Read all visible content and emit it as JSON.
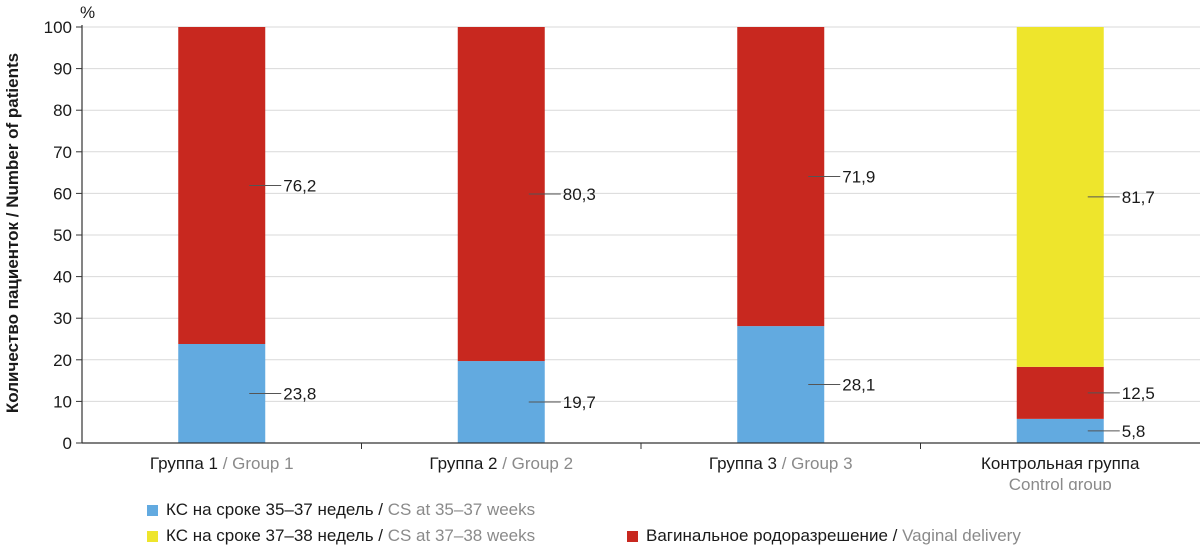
{
  "chart_data": {
    "type": "bar",
    "stacked": true,
    "unit": "%",
    "ylabel": "Количество пациенток / Number of patients",
    "ylim": [
      0,
      100
    ],
    "yticks": [
      0,
      10,
      20,
      30,
      40,
      50,
      60,
      70,
      80,
      90,
      100
    ],
    "categories": [
      {
        "ru": "Группа 1",
        "sep": " / ",
        "en": "Group 1"
      },
      {
        "ru": "Группа 2",
        "sep": " / ",
        "en": "Group 2"
      },
      {
        "ru": "Группа 3",
        "sep": " / ",
        "en": "Group 3"
      },
      {
        "ru": "Контрольная группа",
        "sep": "",
        "en": "Control group"
      }
    ],
    "series": [
      {
        "name_ru": "КС на сроке 35–37 недель",
        "name_en": "CS at 35–37 weeks",
        "color": "#62aae0",
        "values": [
          23.8,
          19.7,
          28.1,
          5.8
        ],
        "labels": [
          "23,8",
          "19,7",
          "28,1",
          "5,8"
        ]
      },
      {
        "name_ru": "Вагинальное родоразрешение",
        "name_en": "Vaginal delivery",
        "color": "#c8281f",
        "values": [
          76.2,
          80.3,
          71.9,
          12.5
        ],
        "labels": [
          "76,2",
          "80,3",
          "71,9",
          "12,5"
        ]
      },
      {
        "name_ru": "КС на сроке 37–38 недель",
        "name_en": "CS at 37–38 weeks",
        "color": "#eee52c",
        "values": [
          0,
          0,
          0,
          81.7
        ],
        "labels": [
          "",
          "",
          "",
          "81,7"
        ]
      }
    ],
    "legend": [
      {
        "ru": "КС на сроке 35–37 недель",
        "sep": " / ",
        "en": "CS at 35–37 weeks",
        "color": "#62aae0"
      },
      {
        "ru": "КС на сроке 37–38 недель",
        "sep": " / ",
        "en": "CS at 37–38 weeks",
        "color": "#eee52c"
      },
      {
        "ru": "Вагинальное родоразрешение",
        "sep": " / ",
        "en": "Vaginal delivery",
        "color": "#c8281f"
      }
    ]
  }
}
